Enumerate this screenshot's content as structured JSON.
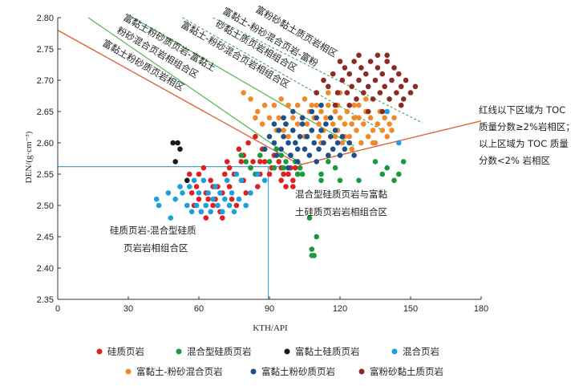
{
  "chart_data": {
    "type": "scatter",
    "xlabel": "KTH/API",
    "ylabel": "DEN/(g·cm⁻³)",
    "xlim": [
      0,
      180
    ],
    "ylim": [
      2.35,
      2.8
    ],
    "xticks": [
      "0",
      "30",
      "60",
      "90",
      "120",
      "150",
      "180"
    ],
    "yticks": [
      "2.35",
      "2.40",
      "2.45",
      "2.50",
      "2.55",
      "2.60",
      "2.65",
      "2.70",
      "2.75",
      "2.80"
    ],
    "series": [
      {
        "name": "硅质页岩",
        "color": "#e02020",
        "points": [
          [
            56,
            2.55
          ],
          [
            57,
            2.52
          ],
          [
            58,
            2.5
          ],
          [
            59,
            2.53
          ],
          [
            60,
            2.51
          ],
          [
            61,
            2.49
          ],
          [
            62,
            2.56
          ],
          [
            63,
            2.52
          ],
          [
            63,
            2.48
          ],
          [
            64,
            2.51
          ],
          [
            65,
            2.54
          ],
          [
            66,
            2.5
          ],
          [
            67,
            2.51
          ],
          [
            68,
            2.53
          ],
          [
            69,
            2.49
          ],
          [
            70,
            2.52
          ],
          [
            71,
            2.55
          ],
          [
            72,
            2.57
          ],
          [
            73,
            2.53
          ],
          [
            74,
            2.51
          ],
          [
            75,
            2.55
          ],
          [
            76,
            2.5
          ],
          [
            77,
            2.59
          ],
          [
            78,
            2.57
          ],
          [
            79,
            2.54
          ],
          [
            80,
            2.52
          ],
          [
            81,
            2.6
          ],
          [
            82,
            2.56
          ],
          [
            83,
            2.57
          ],
          [
            84,
            2.61
          ],
          [
            85,
            2.53
          ],
          [
            86,
            2.55
          ],
          [
            87,
            2.59
          ],
          [
            88,
            2.57
          ],
          [
            90,
            2.55
          ],
          [
            91,
            2.56
          ],
          [
            92,
            2.58
          ],
          [
            94,
            2.57
          ],
          [
            95,
            2.54
          ],
          [
            96,
            2.55
          ],
          [
            97,
            2.53
          ],
          [
            98,
            2.55
          ],
          [
            99,
            2.56
          ],
          [
            100,
            2.54
          ],
          [
            101,
            2.56
          ],
          [
            102,
            2.55
          ],
          [
            60,
            2.55
          ],
          [
            66,
            2.53
          ],
          [
            70,
            2.48
          ],
          [
            73,
            2.56
          ],
          [
            79,
            2.58
          ],
          [
            86,
            2.57
          ],
          [
            95,
            2.56
          ],
          [
            100,
            2.53
          ]
        ]
      },
      {
        "name": "混合型硅质页岩",
        "color": "#1a9a3e",
        "points": [
          [
            78,
            2.58
          ],
          [
            80,
            2.57
          ],
          [
            82,
            2.56
          ],
          [
            84,
            2.55
          ],
          [
            86,
            2.58
          ],
          [
            88,
            2.59
          ],
          [
            90,
            2.57
          ],
          [
            92,
            2.56
          ],
          [
            93,
            2.59
          ],
          [
            95,
            2.58
          ],
          [
            96,
            2.56
          ],
          [
            97,
            2.57
          ],
          [
            99,
            2.58
          ],
          [
            101,
            2.57
          ],
          [
            102,
            2.55
          ],
          [
            103,
            2.56
          ],
          [
            104,
            2.55
          ],
          [
            107,
            2.48
          ],
          [
            108,
            2.42
          ],
          [
            108,
            2.43
          ],
          [
            109,
            2.42
          ],
          [
            110,
            2.45
          ],
          [
            112,
            2.54
          ],
          [
            112,
            2.55
          ],
          [
            115,
            2.57
          ],
          [
            118,
            2.56
          ],
          [
            120,
            2.54
          ],
          [
            128,
            2.54
          ],
          [
            135,
            2.57
          ],
          [
            138,
            2.55
          ],
          [
            140,
            2.56
          ],
          [
            143,
            2.54
          ],
          [
            145,
            2.55
          ],
          [
            147,
            2.57
          ]
        ]
      },
      {
        "name": "富黏土硅质页岩",
        "color": "#1a1a1a",
        "points": [
          [
            49,
            2.6
          ],
          [
            51,
            2.6
          ],
          [
            50,
            2.57
          ],
          [
            55,
            2.54
          ],
          [
            52,
            2.59
          ]
        ]
      },
      {
        "name": "混合页岩",
        "color": "#1aa0dc",
        "points": [
          [
            42,
            2.51
          ],
          [
            43,
            2.5
          ],
          [
            47,
            2.52
          ],
          [
            48,
            2.48
          ],
          [
            50,
            2.51
          ],
          [
            52,
            2.53
          ],
          [
            53,
            2.52
          ],
          [
            55,
            2.5
          ],
          [
            56,
            2.53
          ],
          [
            57,
            2.49
          ],
          [
            58,
            2.54
          ],
          [
            59,
            2.5
          ],
          [
            60,
            2.52
          ],
          [
            61,
            2.49
          ],
          [
            62,
            2.54
          ],
          [
            63,
            2.5
          ],
          [
            64,
            2.52
          ],
          [
            65,
            2.49
          ],
          [
            66,
            2.51
          ],
          [
            67,
            2.53
          ],
          [
            68,
            2.5
          ],
          [
            69,
            2.52
          ],
          [
            70,
            2.49
          ],
          [
            71,
            2.51
          ],
          [
            72,
            2.54
          ],
          [
            73,
            2.5
          ],
          [
            74,
            2.52
          ],
          [
            75,
            2.49
          ],
          [
            76,
            2.55
          ],
          [
            77,
            2.51
          ],
          [
            78,
            2.54
          ],
          [
            80,
            2.5
          ],
          [
            82,
            2.52
          ],
          [
            85,
            2.55
          ],
          [
            88,
            2.54
          ],
          [
            145,
            2.6
          ],
          [
            140,
            2.65
          ]
        ]
      },
      {
        "name": "富黏土-粉砂混合页岩",
        "color": "#ee8a2c",
        "points": [
          [
            79,
            2.68
          ],
          [
            82,
            2.67
          ],
          [
            85,
            2.65
          ],
          [
            88,
            2.66
          ],
          [
            90,
            2.64
          ],
          [
            92,
            2.66
          ],
          [
            94,
            2.64
          ],
          [
            95,
            2.67
          ],
          [
            96,
            2.62
          ],
          [
            97,
            2.63
          ],
          [
            98,
            2.66
          ],
          [
            100,
            2.64
          ],
          [
            100,
            2.62
          ],
          [
            102,
            2.66
          ],
          [
            104,
            2.64
          ],
          [
            105,
            2.67
          ],
          [
            106,
            2.63
          ],
          [
            107,
            2.65
          ],
          [
            108,
            2.62
          ],
          [
            109,
            2.64
          ],
          [
            110,
            2.66
          ],
          [
            111,
            2.63
          ],
          [
            112,
            2.65
          ],
          [
            113,
            2.62
          ],
          [
            114,
            2.64
          ],
          [
            115,
            2.66
          ],
          [
            116,
            2.61
          ],
          [
            117,
            2.63
          ],
          [
            118,
            2.65
          ],
          [
            119,
            2.62
          ],
          [
            120,
            2.64
          ],
          [
            121,
            2.6
          ],
          [
            122,
            2.63
          ],
          [
            123,
            2.65
          ],
          [
            124,
            2.61
          ],
          [
            125,
            2.63
          ],
          [
            126,
            2.66
          ],
          [
            127,
            2.62
          ],
          [
            128,
            2.64
          ],
          [
            129,
            2.6
          ],
          [
            130,
            2.63
          ],
          [
            131,
            2.65
          ],
          [
            132,
            2.61
          ],
          [
            133,
            2.64
          ],
          [
            134,
            2.62
          ],
          [
            135,
            2.6
          ],
          [
            136,
            2.63
          ],
          [
            137,
            2.65
          ],
          [
            138,
            2.62
          ],
          [
            139,
            2.64
          ],
          [
            140,
            2.61
          ],
          [
            141,
            2.63
          ],
          [
            142,
            2.62
          ],
          [
            143,
            2.64
          ],
          [
            112,
            2.6
          ],
          [
            118,
            2.61
          ],
          [
            125,
            2.59
          ],
          [
            131,
            2.67
          ],
          [
            120,
            2.68
          ],
          [
            128,
            2.66
          ],
          [
            115,
            2.68
          ],
          [
            105,
            2.61
          ],
          [
            102,
            2.63
          ],
          [
            98,
            2.61
          ],
          [
            93,
            2.62
          ],
          [
            87,
            2.63
          ],
          [
            84,
            2.64
          ],
          [
            122,
            2.61
          ],
          [
            134,
            2.6
          ],
          [
            126,
            2.64
          ],
          [
            119,
            2.66
          ],
          [
            111,
            2.61
          ],
          [
            108,
            2.66
          ]
        ]
      },
      {
        "name": "富黏土粉砂质页岩",
        "color": "#1f4e8c",
        "points": [
          [
            88,
            2.59
          ],
          [
            90,
            2.61
          ],
          [
            92,
            2.6
          ],
          [
            93,
            2.58
          ],
          [
            94,
            2.62
          ],
          [
            95,
            2.59
          ],
          [
            96,
            2.61
          ],
          [
            97,
            2.63
          ],
          [
            98,
            2.6
          ],
          [
            99,
            2.58
          ],
          [
            100,
            2.62
          ],
          [
            101,
            2.6
          ],
          [
            102,
            2.57
          ],
          [
            103,
            2.61
          ],
          [
            104,
            2.63
          ],
          [
            105,
            2.59
          ],
          [
            106,
            2.61
          ],
          [
            107,
            2.58
          ],
          [
            108,
            2.62
          ],
          [
            109,
            2.6
          ],
          [
            110,
            2.64
          ],
          [
            111,
            2.59
          ],
          [
            112,
            2.62
          ],
          [
            113,
            2.6
          ],
          [
            114,
            2.63
          ],
          [
            115,
            2.58
          ],
          [
            116,
            2.61
          ],
          [
            117,
            2.59
          ],
          [
            118,
            2.62
          ],
          [
            119,
            2.6
          ],
          [
            120,
            2.58
          ],
          [
            121,
            2.61
          ],
          [
            122,
            2.59
          ],
          [
            124,
            2.6
          ],
          [
            126,
            2.58
          ],
          [
            108,
            2.65
          ],
          [
            112,
            2.66
          ],
          [
            104,
            2.64
          ],
          [
            100,
            2.65
          ],
          [
            116,
            2.64
          ],
          [
            92,
            2.63
          ],
          [
            96,
            2.64
          ],
          [
            110,
            2.57
          ],
          [
            98,
            2.56
          ],
          [
            102,
            2.59
          ]
        ]
      },
      {
        "name": "富粉砂黏土质页岩",
        "color": "#8c2a24",
        "points": [
          [
            113,
            2.7
          ],
          [
            115,
            2.69
          ],
          [
            117,
            2.71
          ],
          [
            119,
            2.68
          ],
          [
            121,
            2.7
          ],
          [
            122,
            2.72
          ],
          [
            123,
            2.68
          ],
          [
            124,
            2.71
          ],
          [
            125,
            2.69
          ],
          [
            126,
            2.73
          ],
          [
            127,
            2.67
          ],
          [
            128,
            2.7
          ],
          [
            129,
            2.72
          ],
          [
            130,
            2.68
          ],
          [
            131,
            2.71
          ],
          [
            132,
            2.69
          ],
          [
            133,
            2.73
          ],
          [
            134,
            2.67
          ],
          [
            135,
            2.7
          ],
          [
            136,
            2.72
          ],
          [
            137,
            2.68
          ],
          [
            138,
            2.71
          ],
          [
            139,
            2.69
          ],
          [
            140,
            2.73
          ],
          [
            141,
            2.67
          ],
          [
            142,
            2.7
          ],
          [
            143,
            2.72
          ],
          [
            144,
            2.68
          ],
          [
            145,
            2.71
          ],
          [
            146,
            2.69
          ],
          [
            147,
            2.67
          ],
          [
            148,
            2.7
          ],
          [
            150,
            2.68
          ],
          [
            152,
            2.69
          ],
          [
            128,
            2.74
          ],
          [
            136,
            2.74
          ],
          [
            140,
            2.74
          ],
          [
            118,
            2.66
          ],
          [
            124,
            2.66
          ],
          [
            132,
            2.65
          ],
          [
            138,
            2.65
          ],
          [
            110,
            2.68
          ],
          [
            146,
            2.66
          ],
          [
            120,
            2.73
          ]
        ]
      }
    ],
    "zone_labels": {
      "upper_left": [
        "富黏土粉砂质页岩-富黏土",
        "粉砂混合页岩相组合区"
      ],
      "upper_left_2": "富黏土粉砂质页岩相区",
      "upper_mid": "富黏土-粉砂混合页岩相组合区",
      "upper_mid_2": [
        "富黏土-粉砂混合页岩-富粉",
        "砂黏土质页岩相组合区"
      ],
      "upper_right": "富粉砂黏土质页岩相区",
      "lower_left": [
        "硅质页岩-混合型硅质",
        "页岩岩相组合区"
      ],
      "lower_right": [
        "混合型硅质页岩与富黏",
        "土硅质页岩岩相组合区"
      ],
      "note": [
        "红线以下区域为 TOC",
        "质量分数≥2%岩相区；",
        "以上区域为 TOC 质量",
        "分数<2% 岩相区"
      ]
    },
    "lines": {
      "red_boundary": [
        [
          0,
          2.78
        ],
        [
          103,
          2.565
        ],
        [
          180,
          2.635
        ]
      ],
      "blue_horizontal_y": 2.562,
      "blue_vertical_x": 89.5,
      "green_solid_1": [
        [
          13,
          2.8
        ],
        [
          104,
          2.565
        ]
      ],
      "green_solid_2": [
        [
          32,
          2.8
        ],
        [
          126,
          2.595
        ]
      ],
      "green_dashed_1": [
        [
          53,
          2.8
        ],
        [
          139,
          2.618
        ]
      ],
      "green_dashed_2": [
        [
          66,
          2.8
        ],
        [
          155,
          2.632
        ]
      ]
    }
  }
}
